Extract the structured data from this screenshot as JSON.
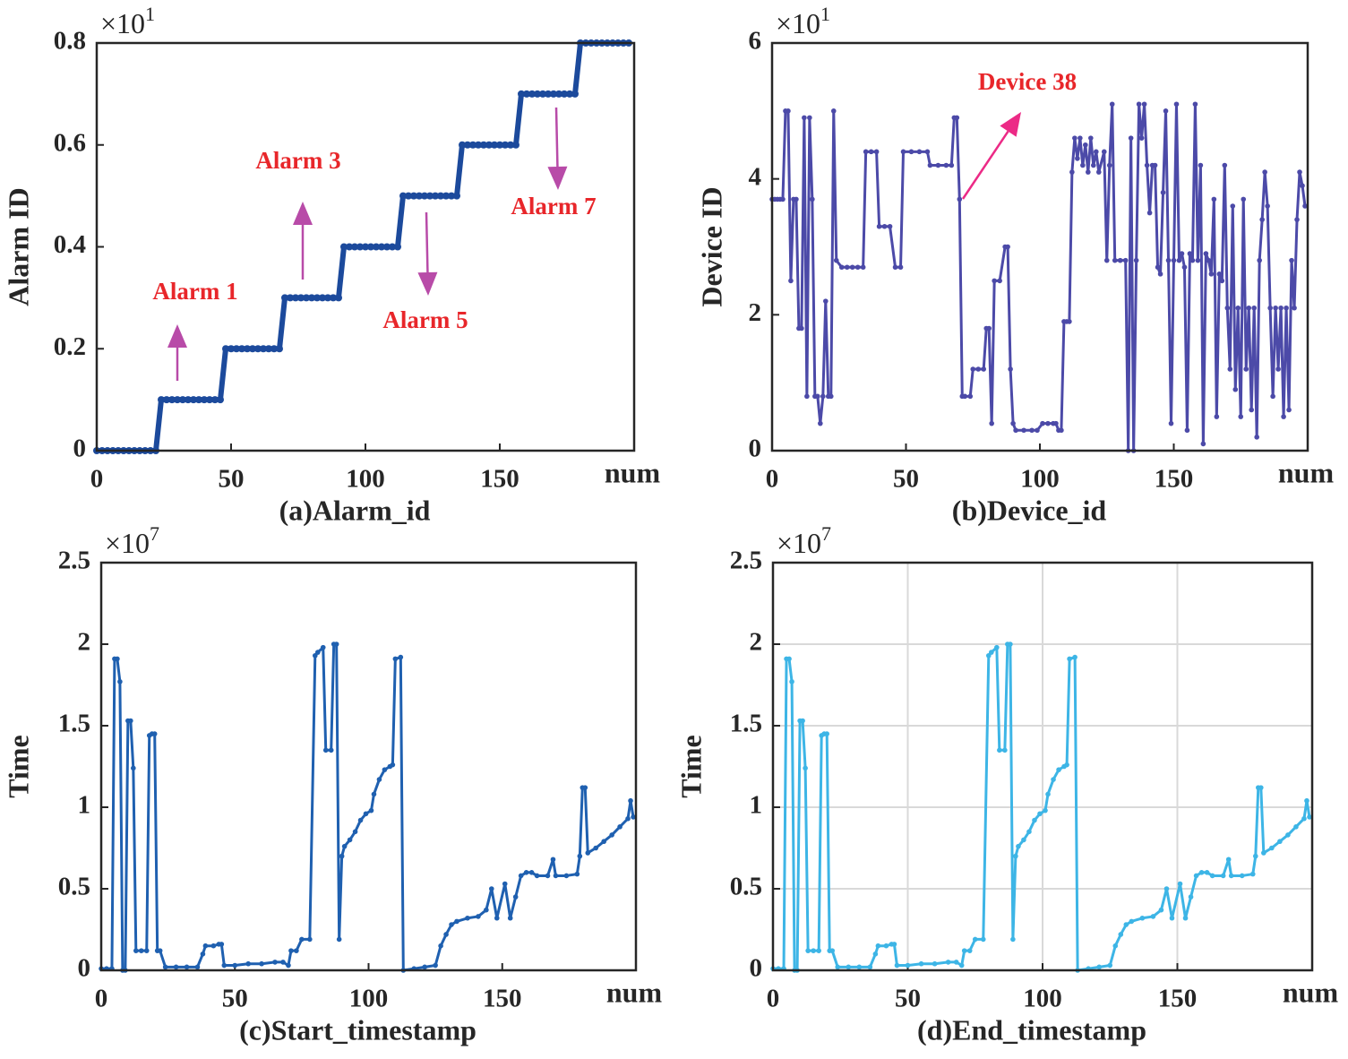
{
  "chart_data": [
    {
      "type": "line",
      "caption": "(a)Alarm_id",
      "ylabel": "Alarm ID",
      "xlabel": "num",
      "y_multiplier": "×10",
      "y_multiplier_power": "1",
      "color": "#1c4a9c",
      "xlim": [
        0,
        200
      ],
      "xticks": [
        0,
        50,
        100,
        150
      ],
      "ylim": [
        0,
        0.8
      ],
      "yticks": [
        0,
        0.2,
        0.4,
        0.6,
        0.8
      ],
      "grid": false,
      "x": [
        0,
        2,
        4,
        6,
        8,
        10,
        12,
        14,
        16,
        18,
        20,
        22,
        24,
        26,
        28,
        30,
        32,
        34,
        36,
        38,
        40,
        42,
        44,
        46,
        48,
        50,
        52,
        54,
        56,
        58,
        60,
        62,
        64,
        66,
        68,
        70,
        72,
        74,
        76,
        78,
        80,
        82,
        84,
        86,
        88,
        90,
        92,
        94,
        96,
        98,
        100,
        102,
        104,
        106,
        108,
        110,
        112,
        114,
        116,
        118,
        120,
        122,
        124,
        126,
        128,
        130,
        132,
        134,
        136,
        138,
        140,
        142,
        144,
        146,
        148,
        150,
        152,
        154,
        156,
        158,
        160,
        162,
        164,
        166,
        168,
        170,
        172,
        174,
        176,
        178,
        180,
        182,
        184,
        186,
        188,
        190,
        192,
        194,
        196,
        198
      ],
      "values": [
        0,
        0,
        0,
        0,
        0,
        0,
        0,
        0,
        0,
        0,
        0,
        0,
        0.1,
        0.1,
        0.1,
        0.1,
        0.1,
        0.1,
        0.1,
        0.1,
        0.1,
        0.1,
        0.1,
        0.1,
        0.2,
        0.2,
        0.2,
        0.2,
        0.2,
        0.2,
        0.2,
        0.2,
        0.2,
        0.2,
        0.2,
        0.3,
        0.3,
        0.3,
        0.3,
        0.3,
        0.3,
        0.3,
        0.3,
        0.3,
        0.3,
        0.3,
        0.4,
        0.4,
        0.4,
        0.4,
        0.4,
        0.4,
        0.4,
        0.4,
        0.4,
        0.4,
        0.4,
        0.5,
        0.5,
        0.5,
        0.5,
        0.5,
        0.5,
        0.5,
        0.5,
        0.5,
        0.5,
        0.5,
        0.6,
        0.6,
        0.6,
        0.6,
        0.6,
        0.6,
        0.6,
        0.6,
        0.6,
        0.6,
        0.6,
        0.7,
        0.7,
        0.7,
        0.7,
        0.7,
        0.7,
        0.7,
        0.7,
        0.7,
        0.7,
        0.7,
        0.8,
        0.8,
        0.8,
        0.8,
        0.8,
        0.8,
        0.8,
        0.8,
        0.8,
        0.8
      ],
      "annotation_text_color": "#e8262a",
      "arrow_color": "#b84ba8",
      "annotations": [
        {
          "text": "Alarm 1"
        },
        {
          "text": "Alarm 3"
        },
        {
          "text": "Alarm 5"
        },
        {
          "text": "Alarm 7"
        }
      ]
    },
    {
      "type": "line",
      "caption": "(b)Device_id",
      "ylabel": "Device ID",
      "xlabel": "num",
      "y_multiplier": "×10",
      "y_multiplier_power": "1",
      "color": "#4c4aa8",
      "xlim": [
        0,
        200
      ],
      "xticks": [
        0,
        50,
        100,
        150
      ],
      "ylim": [
        0,
        6
      ],
      "yticks": [
        0,
        2,
        4,
        6
      ],
      "grid": false,
      "x": [
        0,
        1,
        2,
        3,
        4,
        5,
        6,
        7,
        8,
        9,
        10,
        11,
        12,
        13,
        14,
        15,
        16,
        17,
        18,
        19,
        20,
        21,
        22,
        23,
        24,
        26,
        28,
        30,
        32,
        34,
        35,
        37,
        39,
        40,
        42,
        44,
        46,
        48,
        49,
        52,
        55,
        58,
        59,
        62,
        65,
        67,
        68,
        69,
        70,
        71,
        72,
        74,
        75,
        77,
        79,
        80,
        81,
        82,
        83,
        85,
        87,
        88,
        89,
        90,
        91,
        94,
        97,
        99,
        101,
        103,
        105,
        106,
        107,
        108,
        109,
        110,
        111,
        112,
        113,
        114,
        115,
        116,
        117,
        118,
        119,
        120,
        121,
        122,
        124,
        125,
        126,
        127,
        128,
        130,
        132,
        133,
        134,
        135,
        136,
        137,
        138,
        139,
        140,
        141,
        142,
        143,
        144,
        145,
        146,
        147,
        148,
        149,
        150,
        151,
        152,
        153,
        154,
        155,
        156,
        157,
        158,
        159,
        160,
        161,
        162,
        163,
        164,
        165,
        166,
        167,
        168,
        169,
        170,
        171,
        172,
        173,
        174,
        175,
        176,
        177,
        178,
        179,
        180,
        181,
        182,
        183,
        184,
        185,
        186,
        187,
        188,
        189,
        190,
        191,
        192,
        193,
        194,
        195,
        196,
        197,
        198,
        199
      ],
      "values": [
        3.7,
        3.7,
        3.7,
        3.7,
        3.7,
        5.0,
        5.0,
        2.5,
        3.7,
        3.7,
        1.8,
        1.8,
        4.9,
        0.8,
        4.9,
        3.7,
        0.8,
        0.8,
        0.4,
        0.8,
        2.2,
        0.8,
        0.8,
        5.0,
        2.8,
        2.7,
        2.7,
        2.7,
        2.7,
        2.7,
        4.4,
        4.4,
        4.4,
        3.3,
        3.3,
        3.3,
        2.7,
        2.7,
        4.4,
        4.4,
        4.4,
        4.4,
        4.2,
        4.2,
        4.2,
        4.2,
        4.9,
        4.9,
        3.7,
        0.8,
        0.8,
        0.8,
        1.2,
        1.2,
        1.2,
        1.8,
        1.8,
        0.4,
        2.5,
        2.5,
        3.0,
        3.0,
        1.2,
        0.4,
        0.3,
        0.3,
        0.3,
        0.3,
        0.4,
        0.4,
        0.4,
        0.4,
        0.3,
        0.3,
        1.9,
        1.9,
        1.9,
        4.1,
        4.6,
        4.3,
        4.6,
        4.2,
        4.5,
        4.1,
        4.6,
        4.2,
        4.4,
        4.1,
        4.4,
        2.8,
        4.2,
        5.1,
        2.8,
        2.8,
        2.8,
        0,
        4.6,
        0,
        2.8,
        5.1,
        4.6,
        5.1,
        4.2,
        3.5,
        4.2,
        4.2,
        2.7,
        2.6,
        3.8,
        5.0,
        2.8,
        0.4,
        2.8,
        5.1,
        2.8,
        2.9,
        2.7,
        0.3,
        2.9,
        2.8,
        5.1,
        2.8,
        4.2,
        0.1,
        2.9,
        2.8,
        2.6,
        3.7,
        0.5,
        2.6,
        2.5,
        4.2,
        2.1,
        1.2,
        3.6,
        0.9,
        2.1,
        0.5,
        3.7,
        1.2,
        2.1,
        0.6,
        2.1,
        0.2,
        2.8,
        3.4,
        4.1,
        3.6,
        2.1,
        0.8,
        2.1,
        1.2,
        2.1,
        0.5,
        2.1,
        0.6,
        2.8,
        2.1,
        3.4,
        4.1,
        3.9,
        3.6
      ],
      "annotation_text_color": "#e8262a",
      "arrow_color": "#ec2a86",
      "annotations": [
        {
          "text": "Device 38"
        }
      ]
    },
    {
      "type": "line",
      "caption": "(c)Start_timestamp",
      "ylabel": "Time",
      "xlabel": "num",
      "y_multiplier": "×10",
      "y_multiplier_power": "7",
      "color": "#1f60b0",
      "xlim": [
        0,
        200
      ],
      "xticks": [
        0,
        50,
        100,
        150
      ],
      "ylim": [
        0,
        2.5
      ],
      "yticks": [
        0,
        0.5,
        1,
        1.5,
        2,
        2.5
      ],
      "grid": false,
      "x": [
        0,
        2,
        4,
        5,
        6,
        7,
        8,
        9,
        10,
        11,
        12,
        13,
        15,
        17,
        18,
        19,
        20,
        21,
        22,
        24,
        28,
        32,
        36,
        38,
        39,
        42,
        44,
        45,
        46,
        50,
        55,
        60,
        65,
        68,
        70,
        71,
        73,
        75,
        78,
        80,
        81,
        83,
        84,
        86,
        87,
        88,
        89,
        90,
        91,
        93,
        95,
        97,
        99,
        101,
        102,
        104,
        106,
        108,
        109,
        110,
        112,
        113,
        117,
        121,
        125,
        127,
        129,
        131,
        133,
        137,
        141,
        144,
        146,
        148,
        151,
        153,
        155,
        157,
        159,
        161,
        163,
        167,
        169,
        170,
        174,
        178,
        179,
        180,
        181,
        182,
        185,
        188,
        191,
        194,
        197,
        198,
        199
      ],
      "values": [
        0.01,
        0.01,
        0.01,
        1.91,
        1.91,
        1.77,
        0,
        0,
        1.53,
        1.53,
        1.24,
        0.12,
        0.12,
        0.12,
        1.44,
        1.45,
        1.45,
        0.12,
        0.12,
        0.02,
        0.02,
        0.02,
        0.02,
        0.1,
        0.15,
        0.15,
        0.16,
        0.16,
        0.03,
        0.03,
        0.04,
        0.04,
        0.05,
        0.05,
        0.03,
        0.12,
        0.12,
        0.19,
        0.19,
        1.93,
        1.95,
        1.98,
        1.35,
        1.35,
        2.0,
        2.0,
        0.19,
        0.7,
        0.76,
        0.8,
        0.85,
        0.92,
        0.96,
        0.98,
        1.08,
        1.17,
        1.23,
        1.25,
        1.26,
        1.91,
        1.92,
        0,
        0.01,
        0.02,
        0.03,
        0.15,
        0.22,
        0.28,
        0.3,
        0.32,
        0.33,
        0.37,
        0.5,
        0.32,
        0.53,
        0.32,
        0.45,
        0.58,
        0.6,
        0.6,
        0.58,
        0.58,
        0.68,
        0.58,
        0.58,
        0.59,
        0.7,
        1.12,
        1.12,
        0.72,
        0.75,
        0.79,
        0.83,
        0.88,
        0.93,
        1.04,
        0.94
      ]
    },
    {
      "type": "line",
      "caption": "(d)End_timestamp",
      "ylabel": "Time",
      "xlabel": "num",
      "y_multiplier": "×10",
      "y_multiplier_power": "7",
      "color": "#3db5e6",
      "xlim": [
        0,
        200
      ],
      "xticks": [
        0,
        50,
        100,
        150
      ],
      "ylim": [
        0,
        2.5
      ],
      "yticks": [
        0,
        0.5,
        1,
        1.5,
        2,
        2.5
      ],
      "grid": true,
      "x": [
        0,
        2,
        4,
        5,
        6,
        7,
        8,
        9,
        10,
        11,
        12,
        13,
        15,
        17,
        18,
        19,
        20,
        21,
        22,
        24,
        28,
        32,
        36,
        38,
        39,
        42,
        44,
        45,
        46,
        50,
        55,
        60,
        65,
        68,
        70,
        71,
        73,
        75,
        78,
        80,
        81,
        83,
        84,
        86,
        87,
        88,
        89,
        90,
        91,
        93,
        95,
        97,
        99,
        101,
        102,
        104,
        106,
        108,
        109,
        110,
        112,
        113,
        117,
        121,
        125,
        127,
        129,
        131,
        133,
        137,
        141,
        144,
        146,
        148,
        151,
        153,
        155,
        157,
        159,
        161,
        163,
        167,
        169,
        170,
        174,
        178,
        179,
        180,
        181,
        182,
        185,
        188,
        191,
        194,
        197,
        198,
        199
      ],
      "values": [
        0.01,
        0.01,
        0.01,
        1.91,
        1.91,
        1.77,
        0,
        0,
        1.53,
        1.53,
        1.24,
        0.12,
        0.12,
        0.12,
        1.44,
        1.45,
        1.45,
        0.12,
        0.12,
        0.02,
        0.02,
        0.02,
        0.02,
        0.1,
        0.15,
        0.15,
        0.16,
        0.16,
        0.03,
        0.03,
        0.04,
        0.04,
        0.05,
        0.05,
        0.03,
        0.12,
        0.12,
        0.19,
        0.19,
        1.93,
        1.95,
        1.98,
        1.35,
        1.35,
        2.0,
        2.0,
        0.19,
        0.7,
        0.76,
        0.8,
        0.85,
        0.92,
        0.96,
        0.98,
        1.08,
        1.17,
        1.23,
        1.25,
        1.26,
        1.91,
        1.92,
        0,
        0.01,
        0.02,
        0.03,
        0.15,
        0.22,
        0.28,
        0.3,
        0.32,
        0.33,
        0.37,
        0.5,
        0.32,
        0.53,
        0.32,
        0.45,
        0.58,
        0.6,
        0.6,
        0.58,
        0.58,
        0.68,
        0.58,
        0.58,
        0.59,
        0.7,
        1.12,
        1.12,
        0.72,
        0.75,
        0.79,
        0.83,
        0.88,
        0.93,
        1.04,
        0.94
      ]
    }
  ]
}
